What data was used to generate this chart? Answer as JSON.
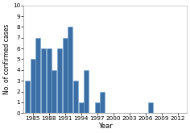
{
  "years": [
    1984,
    1985,
    1986,
    1987,
    1988,
    1989,
    1990,
    1991,
    1992,
    1993,
    1994,
    1995,
    1996,
    1997,
    1998,
    1999,
    2000,
    2001,
    2002,
    2003,
    2004,
    2005,
    2006,
    2007,
    2008,
    2009,
    2010,
    2011,
    2012
  ],
  "values": [
    3,
    5,
    7,
    6,
    6,
    4,
    6,
    7,
    8,
    3,
    1,
    4,
    0,
    1,
    2,
    0,
    0,
    0,
    0,
    0,
    0,
    0,
    0,
    1,
    0,
    0,
    0,
    0,
    0
  ],
  "bar_color": "#3a6ea5",
  "bar_edgecolor": "#7aaad0",
  "xlabel": "Year",
  "ylabel": "No. of confirmed cases",
  "ylim": [
    0,
    10
  ],
  "yticks": [
    0,
    1,
    2,
    3,
    4,
    5,
    6,
    7,
    8,
    9,
    10
  ],
  "xticks": [
    1985,
    1988,
    1991,
    1994,
    1997,
    2000,
    2003,
    2006,
    2009,
    2012
  ],
  "xlabel_fontsize": 6.0,
  "ylabel_fontsize": 5.5,
  "tick_fontsize": 5.2,
  "background_color": "#ffffff"
}
